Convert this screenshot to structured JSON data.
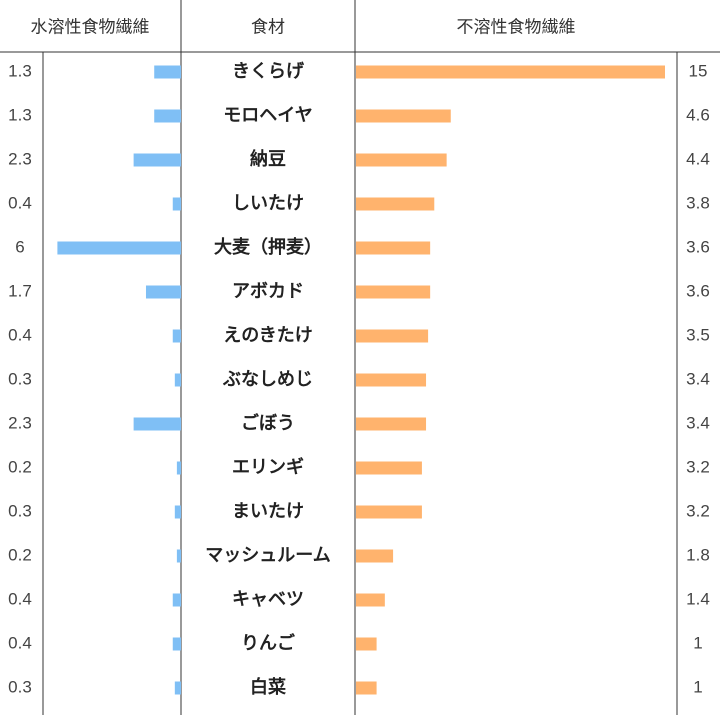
{
  "chart_data": {
    "type": "butterfly",
    "category_header": "食材",
    "categories": [
      "きくらげ",
      "モロヘイヤ",
      "納豆",
      "しいたけ",
      "大麦（押麦）",
      "アボカド",
      "えのきたけ",
      "ぶなしめじ",
      "ごぼう",
      "エリンギ",
      "まいたけ",
      "マッシュルーム",
      "キャベツ",
      "りんご",
      "白菜"
    ],
    "series": [
      {
        "name": "水溶性食物繊維",
        "color": "#7fbff5",
        "values": [
          1.3,
          1.3,
          2.3,
          0.4,
          6,
          1.7,
          0.4,
          0.3,
          2.3,
          0.2,
          0.3,
          0.2,
          0.4,
          0.4,
          0.3
        ]
      },
      {
        "name": "不溶性食物繊維",
        "color": "#ffb36d",
        "values": [
          15,
          4.6,
          4.4,
          3.8,
          3.6,
          3.6,
          3.5,
          3.4,
          3.4,
          3.2,
          3.2,
          1.8,
          1.4,
          1,
          1
        ]
      }
    ],
    "xlim": [
      0,
      15
    ]
  }
}
